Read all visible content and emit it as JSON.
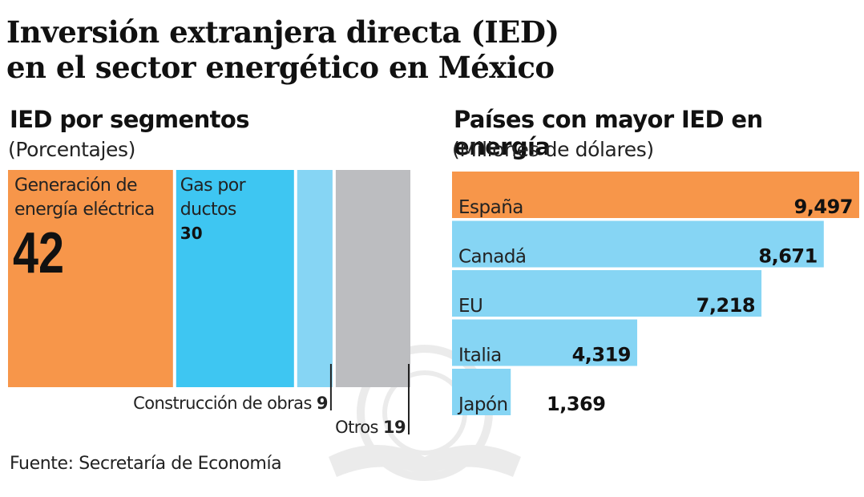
{
  "header": {
    "title_line1": "Inversión extranjera directa (IED)",
    "title_line2": "en el sector energético en México"
  },
  "left_panel": {
    "title": "IED por segmentos",
    "subtitle": "(Porcentajes)"
  },
  "right_panel": {
    "title": "Países con mayor IED en energía",
    "subtitle": "(Millones de dólares)"
  },
  "source": "Fuente: Secretaría de Economía",
  "colors": {
    "orange": "#f7964a",
    "blue": "#3ec6f2",
    "light_blue": "#86d5f4",
    "gray": "#bcbdc0",
    "text": "#111111"
  },
  "chart_data": [
    {
      "type": "treemap",
      "title": "IED por segmentos",
      "subtitle": "(Porcentajes)",
      "unit": "%",
      "categories": [
        "Generación de energía eléctrica",
        "Gas por ductos",
        "Construcción de obras",
        "Otros"
      ],
      "values": [
        42,
        30,
        9,
        19
      ],
      "label_lines": [
        [
          "Generación de",
          "energía eléctrica"
        ],
        [
          "Gas por",
          "ductos"
        ],
        [
          "Construcción de obras"
        ],
        [
          "Otros"
        ]
      ],
      "colors": [
        "#f7964a",
        "#3ec6f2",
        "#86d5f4",
        "#bcbdc0"
      ]
    },
    {
      "type": "bar",
      "orientation": "horizontal",
      "title": "Países con mayor IED en energía",
      "subtitle": "(Millones de dólares)",
      "unit": "Millones de dólares",
      "categories": [
        "España",
        "Canadá",
        "EU",
        "Italia",
        "Japón"
      ],
      "values": [
        9497,
        8671,
        7218,
        4319,
        1369
      ],
      "value_labels": [
        "9,497",
        "8,671",
        "7,218",
        "4,319",
        "1,369"
      ],
      "colors": [
        "#f7964a",
        "#86d5f4",
        "#86d5f4",
        "#86d5f4",
        "#86d5f4"
      ],
      "xlim": [
        0,
        9600
      ]
    }
  ]
}
